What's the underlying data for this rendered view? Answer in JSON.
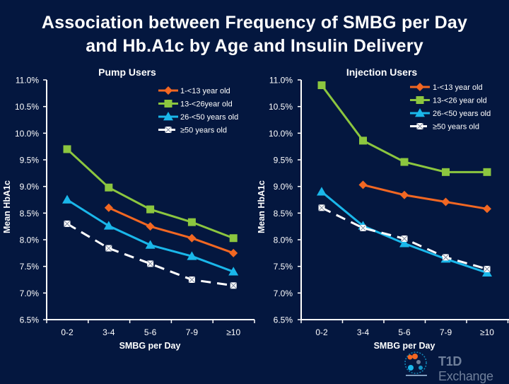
{
  "title": {
    "line1": "Association between Frequency of SMBG per Day",
    "line2": "and Hb.A1c by Age and Insulin Delivery"
  },
  "logo": {
    "brand_bold": "T1D",
    "brand_rest": " Exchange"
  },
  "colors": {
    "background": "#04173f",
    "age_1_13": "#f26722",
    "age_13_26": "#8cc63f",
    "age_26_50": "#1ab7ea",
    "age_50_plus": "#ffffff"
  },
  "chart_data": [
    {
      "type": "line",
      "title": "Pump Users",
      "xlabel": "SMBG per Day",
      "ylabel": "Mean HbA1c",
      "categories": [
        "0-2",
        "3-4",
        "5-6",
        "7-9",
        "≥10"
      ],
      "ylim": [
        6.5,
        11.0
      ],
      "yticks": [
        "6.5%",
        "7.0%",
        "7.5%",
        "8.0%",
        "8.5%",
        "9.0%",
        "9.5%",
        "10.0%",
        "10.5%",
        "11.0%"
      ],
      "ytick_values": [
        6.5,
        7.0,
        7.5,
        8.0,
        8.5,
        9.0,
        9.5,
        10.0,
        10.5,
        11.0
      ],
      "grid": false,
      "legend": "top-right",
      "series": [
        {
          "name": "1-<13 year old",
          "marker": "diamond",
          "color_key": "age_1_13",
          "dashed": false,
          "values": [
            null,
            8.6,
            8.25,
            8.03,
            7.75
          ]
        },
        {
          "name": "13-<26year old",
          "marker": "square",
          "color_key": "age_13_26",
          "dashed": false,
          "values": [
            9.7,
            8.98,
            8.57,
            8.33,
            8.03
          ]
        },
        {
          "name": "26-<50 years old",
          "marker": "triangle",
          "color_key": "age_26_50",
          "dashed": false,
          "values": [
            8.75,
            8.26,
            7.9,
            7.69,
            7.4
          ]
        },
        {
          "name": "≥50 years old",
          "marker": "square-x",
          "color_key": "age_50_plus",
          "dashed": true,
          "values": [
            8.3,
            7.84,
            7.55,
            7.25,
            7.14
          ]
        }
      ]
    },
    {
      "type": "line",
      "title": "Injection  Users",
      "xlabel": "SMBG per Day",
      "ylabel": "Mean HbA1c",
      "categories": [
        "0-2",
        "3-4",
        "5-6",
        "7-9",
        "≥10"
      ],
      "ylim": [
        6.5,
        11.0
      ],
      "yticks": [
        "6.5%",
        "7.0%",
        "7.5%",
        "8.0%",
        "8.5%",
        "9.0%",
        "9.5%",
        "10.0%",
        "10.5%",
        "11.0%"
      ],
      "ytick_values": [
        6.5,
        7.0,
        7.5,
        8.0,
        8.5,
        9.0,
        9.5,
        10.0,
        10.5,
        11.0
      ],
      "grid": false,
      "legend": "top-right",
      "series": [
        {
          "name": "1-<13 year old",
          "marker": "diamond",
          "color_key": "age_1_13",
          "dashed": false,
          "values": [
            null,
            9.03,
            8.84,
            8.71,
            8.58
          ]
        },
        {
          "name": "13-<26 year old",
          "marker": "square",
          "color_key": "age_13_26",
          "dashed": false,
          "values": [
            10.9,
            9.86,
            9.46,
            9.27,
            9.27
          ]
        },
        {
          "name": "26-<50 years old",
          "marker": "triangle",
          "color_key": "age_26_50",
          "dashed": false,
          "values": [
            8.9,
            8.26,
            7.93,
            7.64,
            7.38
          ]
        },
        {
          "name": "≥50 years old",
          "marker": "square-x",
          "color_key": "age_50_plus",
          "dashed": true,
          "values": [
            8.6,
            8.22,
            8.02,
            7.67,
            7.45
          ]
        }
      ]
    }
  ]
}
